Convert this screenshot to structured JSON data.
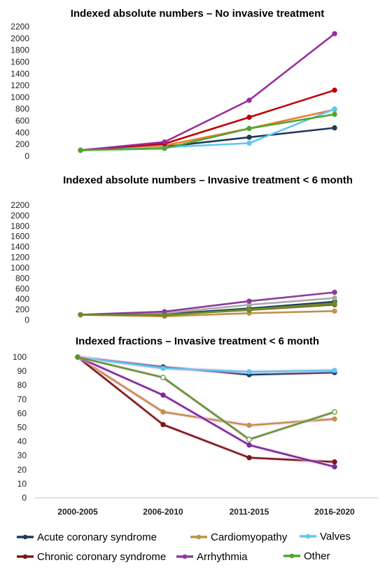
{
  "chart_data": [
    {
      "type": "line",
      "title": "Indexed absolute numbers – No invasive treatment",
      "xlabel": "",
      "ylabel": "",
      "ylim": [
        0,
        2200
      ],
      "yticks": [
        0,
        200,
        400,
        600,
        800,
        1000,
        1200,
        1400,
        1600,
        1800,
        2000,
        2200
      ],
      "grid": false,
      "categories": [
        "2000-2005",
        "2006-2010",
        "2011-2015",
        "2016-2020"
      ],
      "series": [
        {
          "name": "Acute coronary syndrome",
          "color": "#1f3a5a",
          "values": [
            100,
            160,
            320,
            480
          ]
        },
        {
          "name": "Cardiomyopathy",
          "color": "#ed7d31",
          "values": [
            100,
            180,
            470,
            790
          ]
        },
        {
          "name": "Valves",
          "color": "#5cc8f0",
          "values": [
            100,
            150,
            220,
            800
          ]
        },
        {
          "name": "Chronic coronary syndrome",
          "color": "#c00000",
          "values": [
            100,
            210,
            660,
            1120
          ]
        },
        {
          "name": "Arrhythmia",
          "color": "#9b2d9b",
          "values": [
            100,
            240,
            950,
            2080
          ]
        },
        {
          "name": "Other",
          "color": "#4ea72e",
          "values": [
            100,
            130,
            470,
            710
          ]
        }
      ]
    },
    {
      "type": "line",
      "title": "Indexed absolute numbers – Invasive treatment < 6 month",
      "xlabel": "",
      "ylabel": "",
      "ylim": [
        0,
        2200
      ],
      "yticks": [
        0,
        200,
        400,
        600,
        800,
        1000,
        1200,
        1400,
        1600,
        1800,
        2000,
        2200
      ],
      "grid": false,
      "categories": [
        "2000-2005",
        "2006-2010",
        "2011-2015",
        "2016-2020"
      ],
      "series": [
        {
          "name": "Acute coronary syndrome",
          "color": "#1f3a5a",
          "values": [
            100,
            110,
            220,
            350
          ]
        },
        {
          "name": "Cardiomyopathy",
          "color": "#c0914a",
          "values": [
            100,
            70,
            130,
            170
          ]
        },
        {
          "name": "Valves",
          "color": "#a9a9a9",
          "values": [
            100,
            130,
            290,
            420
          ]
        },
        {
          "name": "Chronic coronary syndrome",
          "color": "#7b6a2a",
          "values": [
            100,
            100,
            190,
            290
          ]
        },
        {
          "name": "Arrhythmia",
          "color": "#8e3a9c",
          "values": [
            100,
            160,
            360,
            530
          ]
        },
        {
          "name": "Other",
          "color": "#6b8e23",
          "values": [
            100,
            90,
            200,
            320
          ]
        }
      ]
    },
    {
      "type": "line",
      "title": "Indexed fractions – Invasive treatment < 6 month",
      "xlabel": "",
      "ylabel": "",
      "ylim": [
        0,
        100
      ],
      "yticks": [
        0,
        10,
        20,
        30,
        40,
        50,
        60,
        70,
        80,
        90,
        100
      ],
      "grid": false,
      "categories": [
        "2000-2005",
        "2006-2010",
        "2011-2015",
        "2016-2020"
      ],
      "series": [
        {
          "name": "Acute coronary syndrome",
          "color": "#1f3a5a",
          "values": [
            100,
            93,
            87.5,
            89
          ]
        },
        {
          "name": "Cardiomyopathy",
          "color": "#c0914a",
          "values": [
            100,
            61,
            51.5,
            56
          ]
        },
        {
          "name": "Valves",
          "color": "#5cc8f0",
          "values": [
            100,
            92,
            89.5,
            90.5
          ]
        },
        {
          "name": "Chronic coronary syndrome",
          "color": "#7b1a12",
          "values": [
            100,
            52,
            28.5,
            25.5
          ]
        },
        {
          "name": "Arrhythmia",
          "color": "#7a2d9b",
          "values": [
            100,
            73,
            37.5,
            22
          ]
        },
        {
          "name": "Other",
          "color": "#5a9a2a",
          "values": [
            100,
            85.5,
            41.5,
            61
          ]
        }
      ]
    }
  ],
  "legend": {
    "placement": "bottom",
    "items": [
      {
        "name": "Acute coronary syndrome",
        "color": "#1f3a5a"
      },
      {
        "name": "Cardiomyopathy",
        "color": "#c0914a"
      },
      {
        "name": "Valves",
        "color": "#5cc8f0"
      },
      {
        "name": "Chronic coronary syndrome",
        "color": "#7b1a12"
      },
      {
        "name": "Arrhythmia",
        "color": "#8e3a9c"
      },
      {
        "name": "Other",
        "color": "#4ea72e"
      }
    ]
  }
}
